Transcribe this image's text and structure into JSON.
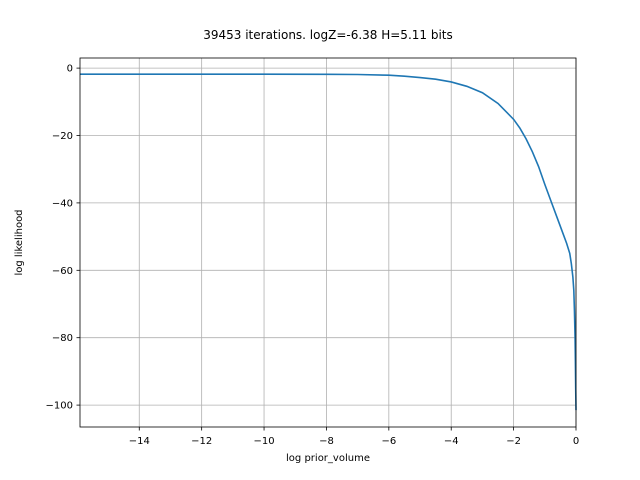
{
  "chart_data": {
    "type": "line",
    "title": "39453 iterations. logZ=-6.38 H=5.11 bits",
    "xlabel": "log prior_volume",
    "ylabel": "log likelihood",
    "xlim": [
      -15.9,
      0
    ],
    "ylim": [
      -106.5,
      3
    ],
    "xticks": [
      -14,
      -12,
      -10,
      -8,
      -6,
      -4,
      -2,
      0
    ],
    "yticks": [
      0,
      -20,
      -40,
      -60,
      -80,
      -100
    ],
    "xtick_labels": [
      "−14",
      "−12",
      "−10",
      "−8",
      "−6",
      "−4",
      "−2",
      "0"
    ],
    "ytick_labels": [
      "0",
      "−20",
      "−40",
      "−60",
      "−80",
      "−100"
    ],
    "grid": true,
    "series": [
      {
        "color": "#1f77b4",
        "x": [
          -15.9,
          -14,
          -12,
          -10,
          -8,
          -7,
          -6,
          -5.5,
          -5,
          -4.5,
          -4,
          -3.5,
          -3,
          -2.5,
          -2,
          -1.8,
          -1.6,
          -1.4,
          -1.2,
          -1.0,
          -0.8,
          -0.6,
          -0.4,
          -0.3,
          -0.2,
          -0.15,
          -0.1,
          -0.07,
          -0.05,
          -0.03,
          -0.02,
          -0.01,
          0
        ],
        "y": [
          -1.8,
          -1.8,
          -1.8,
          -1.8,
          -1.85,
          -1.9,
          -2.1,
          -2.4,
          -2.8,
          -3.3,
          -4.1,
          -5.4,
          -7.3,
          -10.5,
          -15.2,
          -17.8,
          -21.0,
          -24.8,
          -29.2,
          -34.5,
          -39.5,
          -44.5,
          -49.5,
          -52.0,
          -55.0,
          -58.0,
          -62.0,
          -66.0,
          -72.0,
          -80.0,
          -87.0,
          -95.0,
          -101.5
        ]
      }
    ]
  }
}
